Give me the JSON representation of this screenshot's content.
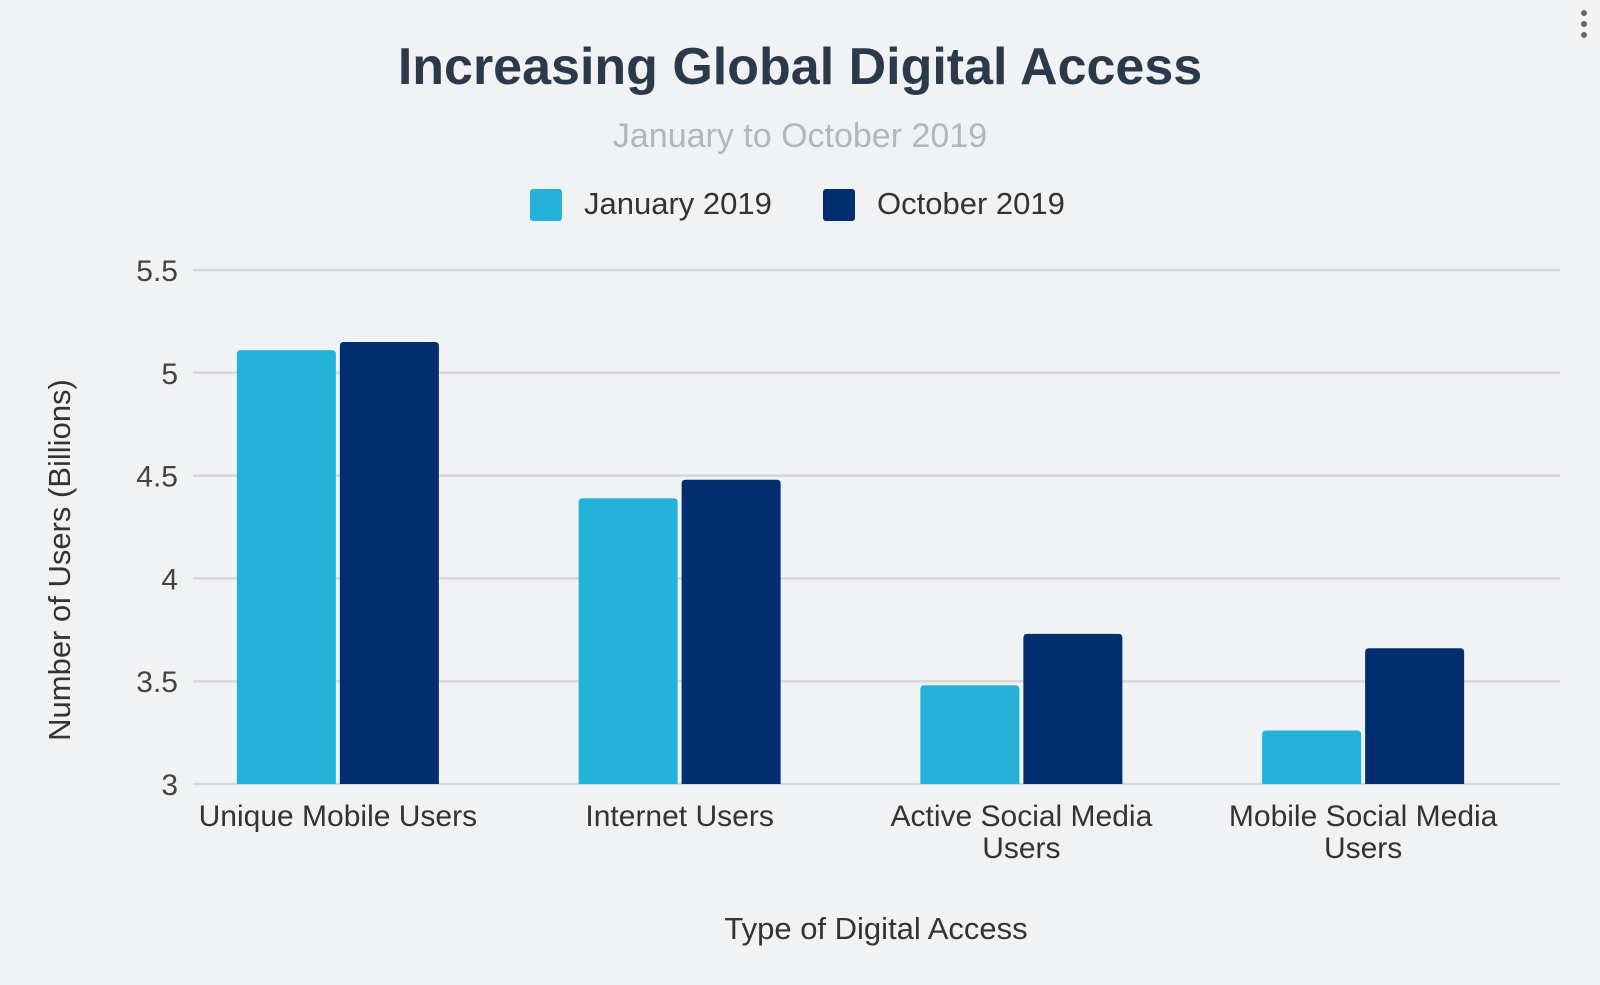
{
  "chart_data": {
    "type": "bar",
    "title": "Increasing Global Digital Access",
    "subtitle": "January to October 2019",
    "xlabel": "Type of Digital Access",
    "ylabel": "Number of Users (Billions)",
    "categories": [
      [
        "Unique Mobile Users"
      ],
      [
        "Internet Users"
      ],
      [
        "Active Social Media",
        "Users"
      ],
      [
        "Mobile Social Media",
        "Users"
      ]
    ],
    "series": [
      {
        "name": "January 2019",
        "color": "#25b2d9",
        "values": [
          5.11,
          4.39,
          3.48,
          3.26
        ]
      },
      {
        "name": "October 2019",
        "color": "#002e6e",
        "values": [
          5.15,
          4.48,
          3.73,
          3.66
        ]
      }
    ],
    "ylim": [
      3,
      5.5
    ],
    "yticks": [
      "3",
      "3.5",
      "4",
      "4.5",
      "5",
      "5.5"
    ],
    "ytick_values": [
      3,
      3.5,
      4,
      4.5,
      5,
      5.5
    ],
    "grid": true,
    "legend_position": "top-center"
  },
  "menu_icon": "kebab-menu-icon"
}
